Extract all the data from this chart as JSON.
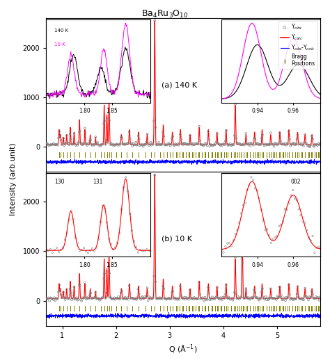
{
  "title": "Ba$_4$Ru$_3$O$_{10}$",
  "xlabel": "Q (Å$^{-1}$)",
  "ylabel": "Intensity (arb.unit)",
  "label_a": "(a) 140 K",
  "label_b": "(b) 10 K",
  "legend_obs": "Y$_{obs}$",
  "legend_calc": "Y$_{calc}$",
  "legend_diff": "Y$_{obs}$-Y$_{calc}$",
  "legend_bragg": "Bragg\nPositions",
  "legend_140K": "140 K",
  "legend_10K": "10 K",
  "inset_a_left_label1": "140 K",
  "inset_a_left_label2": "10 K",
  "inset_b_left_label1": "130",
  "inset_b_left_label2": "131",
  "inset_b_right_label": "002",
  "q_min": 0.7,
  "q_max": 5.8,
  "y_min": 0,
  "y_max": 2500,
  "obs_color": "#808080",
  "calc_color": "#ff0000",
  "diff_color": "#0000ff",
  "bragg_color": "#808000",
  "color_140K": "#000000",
  "color_10K": "#ff00ff",
  "background_color": "#ffffff"
}
